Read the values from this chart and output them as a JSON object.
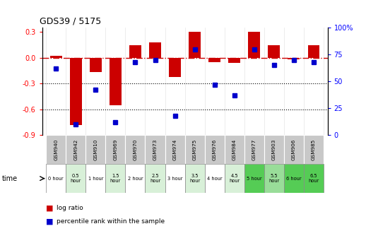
{
  "title": "GDS39 / 5175",
  "gsm_labels": [
    "GSM940",
    "GSM942",
    "GSM910",
    "GSM969",
    "GSM970",
    "GSM973",
    "GSM974",
    "GSM975",
    "GSM976",
    "GSM984",
    "GSM977",
    "GSM903",
    "GSM906",
    "GSM985"
  ],
  "time_labels": [
    "0 hour",
    "0.5\nhour",
    "1 hour",
    "1.5\nhour",
    "2 hour",
    "2.5\nhour",
    "3 hour",
    "3.5\nhour",
    "4 hour",
    "4.5\nhour",
    "5 hour",
    "5.5\nhour",
    "6 hour",
    "6.5\nhour"
  ],
  "log_ratio": [
    0.02,
    -0.78,
    -0.17,
    -0.55,
    0.15,
    0.18,
    -0.22,
    0.3,
    -0.05,
    -0.06,
    0.3,
    0.15,
    -0.02,
    0.15
  ],
  "percentile": [
    62,
    10,
    42,
    12,
    68,
    70,
    18,
    80,
    47,
    37,
    80,
    65,
    70,
    68
  ],
  "time_bg": [
    "white",
    "light",
    "white",
    "light",
    "white",
    "light",
    "white",
    "light",
    "white",
    "light",
    "green",
    "light_green",
    "green",
    "green"
  ],
  "ylim_left": [
    -0.9,
    0.35
  ],
  "ylim_right": [
    0,
    100
  ],
  "left_ticks": [
    0.3,
    0.0,
    -0.3,
    -0.6,
    -0.9
  ],
  "right_ticks": [
    100,
    75,
    50,
    25,
    0
  ],
  "bar_color": "#cc0000",
  "dot_color": "#0000cc",
  "hline_color": "#cc0000",
  "dotted_line_color": "#000000",
  "gsm_bg": "#c8c8c8",
  "time_bg_colors": {
    "white": "#ffffff",
    "light": "#d8f0d8",
    "green": "#55cc55",
    "light_green": "#99dd99"
  },
  "legend_dot_red": "#cc0000",
  "legend_dot_blue": "#0000cc"
}
